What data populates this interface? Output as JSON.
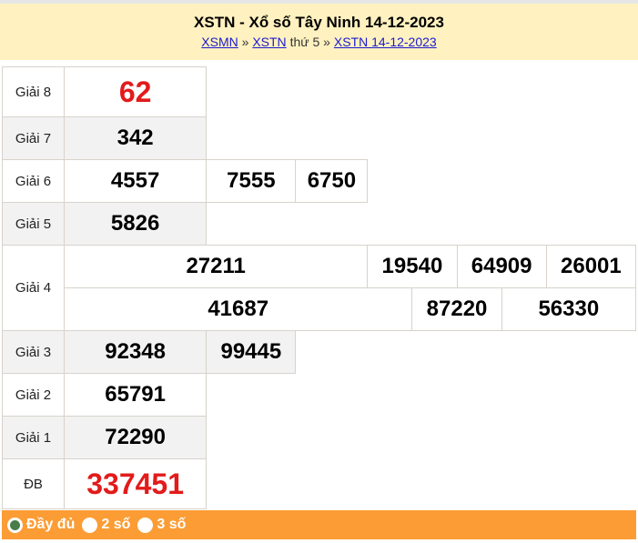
{
  "header": {
    "title": "XSTN - Xổ số Tây Ninh 14-12-2023",
    "crumbs": [
      "XSMN",
      "»",
      "XSTN",
      "thứ 5 »",
      "XSTN 14-12-2023"
    ]
  },
  "prizes": [
    {
      "label": "Giải 8",
      "rows": [
        [
          "62"
        ]
      ],
      "highlight": true
    },
    {
      "label": "Giải 7",
      "rows": [
        [
          "342"
        ]
      ]
    },
    {
      "label": "Giải 6",
      "rows": [
        [
          "4557",
          "7555",
          "6750"
        ]
      ]
    },
    {
      "label": "Giải 5",
      "rows": [
        [
          "5826"
        ]
      ]
    },
    {
      "label": "Giải 4",
      "rows": [
        [
          "27211",
          "19540",
          "64909",
          "26001"
        ],
        [
          "41687",
          "87220",
          "56330"
        ]
      ]
    },
    {
      "label": "Giải 3",
      "rows": [
        [
          "92348",
          "99445"
        ]
      ]
    },
    {
      "label": "Giải 2",
      "rows": [
        [
          "65791"
        ]
      ]
    },
    {
      "label": "Giải 1",
      "rows": [
        [
          "72290"
        ]
      ]
    },
    {
      "label": "ĐB",
      "rows": [
        [
          "337451"
        ]
      ],
      "highlight": true
    }
  ],
  "footer": {
    "options": [
      {
        "label": "Đầy đủ",
        "selected": true
      },
      {
        "label": "2 số",
        "selected": false
      },
      {
        "label": "3 số",
        "selected": false
      }
    ]
  },
  "colors": {
    "header_bg": "#fff1c0",
    "footer_bg": "#fc9c34",
    "highlight": "#e21b1b",
    "link": "#1b1bd0"
  }
}
